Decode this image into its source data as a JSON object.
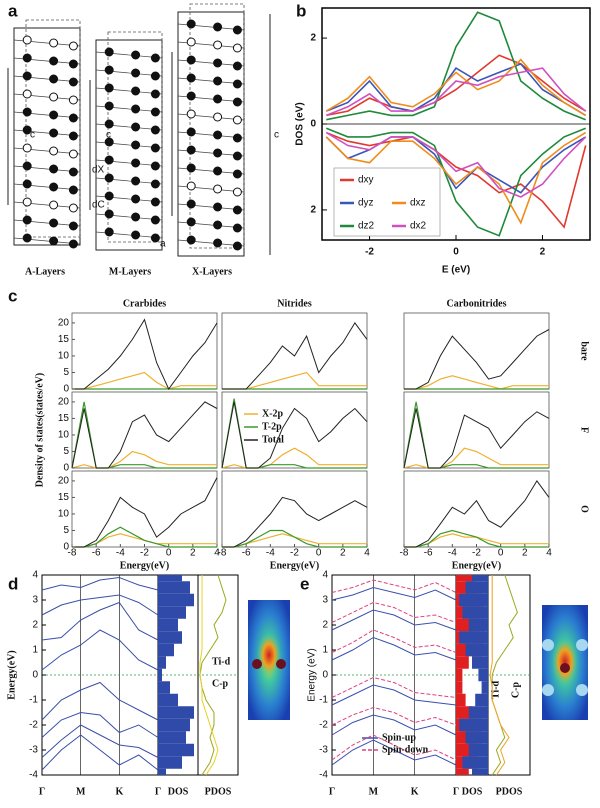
{
  "panel_labels": [
    "a",
    "b",
    "c",
    "d",
    "e"
  ],
  "panel_a": {
    "layers": [
      "A-Layers",
      "M-Layers",
      "X-Layers"
    ],
    "annotations": [
      "c",
      "c",
      "c",
      "dX",
      "dC",
      "a"
    ]
  },
  "chart_data": [
    {
      "type": "line",
      "xlabel": "E (eV)",
      "ylabel": "DOS (eV)",
      "x": [
        -3,
        -2.5,
        -2,
        -1.5,
        -1,
        -0.5,
        0,
        0.5,
        1,
        1.5,
        2,
        2.5,
        3
      ],
      "xlim": [
        -3.1,
        3.1
      ],
      "ylim": [
        -2.7,
        2.7
      ],
      "xticks": [
        -2,
        0,
        2
      ],
      "yticks": [
        {
          "value": -2,
          "label": "2"
        },
        0,
        2
      ],
      "series": [
        {
          "name": "dxy",
          "color": "#e03a2e",
          "values": [
            0.2,
            0.3,
            0.6,
            0.4,
            0.3,
            0.5,
            0.8,
            1.2,
            1.6,
            1.4,
            1.0,
            0.6,
            0.3
          ],
          "values_down": [
            -0.2,
            -0.4,
            -0.5,
            -0.4,
            -0.3,
            -0.6,
            -1.0,
            -1.2,
            -1.6,
            -1.4,
            -1.8,
            -2.4,
            -0.5
          ]
        },
        {
          "name": "dyz",
          "color": "#3a56b8",
          "values": [
            0.3,
            0.5,
            1.0,
            0.4,
            0.3,
            0.6,
            1.3,
            1.0,
            1.2,
            1.4,
            0.8,
            0.5,
            0.2
          ],
          "values_down": [
            -0.3,
            -0.8,
            -0.6,
            -0.3,
            -0.3,
            -0.7,
            -1.5,
            -1.0,
            -1.3,
            -1.6,
            -1.0,
            -0.6,
            -0.3
          ]
        },
        {
          "name": "dz2",
          "color": "#1e8a3a",
          "values": [
            0.1,
            0.2,
            0.3,
            0.2,
            0.2,
            0.4,
            1.8,
            2.6,
            2.4,
            1.0,
            0.6,
            0.3,
            0.1
          ],
          "values_down": [
            -0.1,
            -0.3,
            -0.3,
            -0.2,
            -0.2,
            -0.5,
            -1.8,
            -2.4,
            -2.6,
            -1.2,
            -0.7,
            -0.3,
            -0.1
          ]
        },
        {
          "name": "dxz",
          "color": "#f08c1a",
          "values": [
            0.3,
            0.6,
            1.1,
            0.5,
            0.4,
            0.7,
            1.2,
            0.8,
            1.0,
            1.5,
            0.9,
            0.5,
            0.2
          ],
          "values_down": [
            -0.3,
            -0.8,
            -0.9,
            -0.4,
            -0.4,
            -0.8,
            -1.4,
            -1.0,
            -1.4,
            -2.3,
            -0.9,
            -0.5,
            -0.2
          ]
        },
        {
          "name": "dx2",
          "color": "#d050c0",
          "values": [
            0.2,
            0.4,
            0.7,
            0.3,
            0.3,
            0.5,
            1.0,
            0.9,
            1.1,
            1.2,
            1.3,
            0.7,
            0.3
          ],
          "values_down": [
            -0.2,
            -0.5,
            -0.6,
            -0.3,
            -0.3,
            -0.6,
            -1.1,
            -0.9,
            -1.5,
            -1.7,
            -1.4,
            -0.8,
            -0.3
          ]
        }
      ]
    },
    {
      "type": "dos-grid",
      "ylabel": "Density of states(states/eV)",
      "xlabel": "Energy(eV)",
      "columns": [
        "Crarbides",
        "Nitrides",
        "Carbonitrides"
      ],
      "rows": [
        "bare",
        "F",
        "O"
      ],
      "x": [
        -8,
        -7,
        -6,
        -5,
        -4,
        -3,
        -2,
        -1,
        0,
        1,
        2,
        3,
        4
      ],
      "xlim": [
        -8,
        4
      ],
      "ylim": [
        0,
        23
      ],
      "xticks": [
        -8,
        -6,
        -4,
        -2,
        0,
        2,
        4
      ],
      "yticks": [
        0,
        5,
        10,
        15,
        20
      ],
      "series": [
        {
          "name": "X-2p",
          "color": "#f0b030"
        },
        {
          "name": "T-2p",
          "color": "#3a9a2a"
        },
        {
          "name": "Total",
          "color": "#222222"
        }
      ],
      "panels": [
        [
          [
            [
              0,
              0,
              1,
              2,
              3,
              4,
              5,
              2,
              0,
              1,
              1,
              1,
              1
            ],
            [
              0,
              0,
              0,
              0,
              0,
              0,
              0,
              0,
              0,
              0,
              0,
              0,
              0
            ],
            [
              0,
              0,
              3,
              6,
              10,
              15,
              21,
              8,
              0,
              5,
              10,
              14,
              20
            ]
          ],
          [
            [
              0,
              0,
              0,
              1,
              2,
              3,
              4,
              5,
              1,
              1,
              1,
              1,
              1
            ],
            [
              0,
              0,
              0,
              0,
              0,
              0,
              0,
              0,
              0,
              0,
              0,
              0,
              0
            ],
            [
              0,
              0,
              0,
              4,
              8,
              13,
              10,
              16,
              5,
              10,
              14,
              20,
              15
            ]
          ],
          [
            [
              0,
              0,
              1,
              3,
              4,
              3,
              2,
              1,
              0,
              1,
              1,
              1,
              1
            ],
            [
              0,
              0,
              0,
              0,
              0,
              0,
              0,
              0,
              0,
              0,
              0,
              0,
              0
            ],
            [
              0,
              0,
              2,
              10,
              16,
              12,
              8,
              3,
              4,
              8,
              12,
              16,
              18
            ]
          ]
        ],
        [
          [
            [
              0,
              1,
              0,
              0,
              2,
              5,
              4,
              2,
              1,
              1,
              1,
              1,
              1
            ],
            [
              0,
              20,
              0,
              0,
              1,
              1,
              1,
              0,
              0,
              0,
              0,
              0,
              0
            ],
            [
              0,
              18,
              0,
              0,
              5,
              14,
              16,
              10,
              8,
              12,
              16,
              20,
              18
            ]
          ],
          [
            [
              0,
              1,
              0,
              0,
              1,
              4,
              6,
              4,
              1,
              1,
              1,
              1,
              1
            ],
            [
              0,
              21,
              0,
              0,
              1,
              1,
              1,
              0,
              0,
              0,
              0,
              0,
              0
            ],
            [
              0,
              20,
              0,
              0,
              3,
              12,
              18,
              15,
              8,
              11,
              15,
              18,
              14
            ]
          ],
          [
            [
              0,
              1,
              0,
              0,
              2,
              6,
              5,
              3,
              1,
              1,
              1,
              1,
              1
            ],
            [
              0,
              20,
              0,
              0,
              1,
              1,
              1,
              0,
              0,
              0,
              0,
              0,
              0
            ],
            [
              0,
              18,
              0,
              0,
              4,
              16,
              14,
              12,
              6,
              10,
              14,
              17,
              15
            ]
          ]
        ],
        [
          [
            [
              0,
              0,
              1,
              3,
              4,
              3,
              2,
              1,
              1,
              1,
              1,
              1,
              1
            ],
            [
              0,
              0,
              1,
              4,
              6,
              4,
              2,
              1,
              0,
              0,
              0,
              0,
              0
            ],
            [
              0,
              0,
              2,
              8,
              15,
              12,
              10,
              3,
              6,
              10,
              12,
              14,
              21
            ]
          ],
          [
            [
              0,
              0,
              1,
              2,
              3,
              4,
              3,
              2,
              1,
              1,
              1,
              1,
              1
            ],
            [
              0,
              0,
              1,
              3,
              5,
              5,
              3,
              1,
              0,
              0,
              0,
              0,
              0
            ],
            [
              0,
              0,
              2,
              6,
              10,
              15,
              14,
              10,
              8,
              10,
              12,
              14,
              12
            ]
          ],
          [
            [
              0,
              0,
              1,
              3,
              4,
              3,
              3,
              2,
              1,
              1,
              1,
              1,
              1
            ],
            [
              0,
              0,
              1,
              4,
              5,
              4,
              3,
              1,
              0,
              0,
              0,
              0,
              0
            ],
            [
              0,
              0,
              2,
              7,
              12,
              10,
              14,
              8,
              6,
              10,
              14,
              20,
              15
            ]
          ]
        ]
      ]
    },
    {
      "type": "bands",
      "ylabel": "Energy(eV)",
      "categories": [
        "Γ",
        null,
        "M",
        null,
        "K",
        null,
        "Γ"
      ],
      "ylim": [
        -4,
        4
      ],
      "yticks": [
        4,
        3,
        2,
        1,
        0,
        -1,
        -2,
        -3,
        -4
      ],
      "band_color": "#3a4fa8",
      "bands": [
        [
          -3.8,
          -3.0,
          -2.4,
          -3.0,
          -3.6,
          -3.2,
          -3.8
        ],
        [
          -3.3,
          -2.6,
          -2.0,
          -2.4,
          -2.8,
          -2.9,
          -3.3
        ],
        [
          -2.5,
          -1.8,
          -1.5,
          -1.6,
          -2.3,
          -2.0,
          -2.5
        ],
        [
          -1.8,
          -1.0,
          -0.6,
          -0.3,
          -1.0,
          -1.4,
          -1.8
        ],
        [
          0.2,
          0.8,
          1.2,
          1.8,
          1.4,
          0.6,
          0.2
        ],
        [
          1.4,
          1.5,
          2.2,
          2.6,
          2.9,
          1.8,
          1.4
        ],
        [
          2.4,
          2.8,
          3.0,
          3.1,
          3.2,
          2.9,
          2.4
        ],
        [
          3.4,
          3.6,
          3.5,
          3.8,
          3.9,
          3.6,
          3.4
        ]
      ],
      "energies": [
        -4,
        -3.5,
        -3,
        -2.5,
        -2,
        -1.5,
        -1,
        -0.5,
        0,
        0.5,
        1,
        1.5,
        2,
        2.5,
        3,
        3.5,
        4
      ],
      "dos": {
        "label": "DOS",
        "color": "#2f4aa8",
        "xlim": [
          0,
          10
        ],
        "values": [
          2,
          6,
          9,
          7,
          8,
          9,
          5,
          3,
          1,
          2,
          4,
          6,
          5,
          7,
          9,
          8,
          6
        ]
      },
      "pdos": {
        "label": "PDOS",
        "xlim": [
          0,
          10
        ],
        "series": [
          {
            "name": "Ti-d",
            "color": "#9aa81a",
            "values": [
              1,
              3,
              4,
              3,
              4,
              4,
              2,
              1,
              0.5,
              1,
              3,
              5,
              4,
              6,
              7,
              6,
              5
            ]
          },
          {
            "name": "C-p",
            "color": "#e8d020",
            "values": [
              2,
              4,
              5,
              4,
              3,
              2,
              1,
              1,
              0.5,
              0.5,
              1,
              1,
              1,
              1,
              1,
              1,
              1
            ]
          }
        ]
      }
    },
    {
      "type": "spin-bands",
      "ylabel": "Energy (eV)",
      "categories": [
        "Γ",
        null,
        "M",
        null,
        "K",
        null,
        "Γ"
      ],
      "ylim": [
        -4,
        4
      ],
      "yticks": [
        4,
        3,
        2,
        1,
        0,
        -1,
        -2,
        -3,
        -4
      ],
      "series": [
        {
          "name": "Spin-up",
          "color": "#3a4fb0",
          "dashed": false,
          "bands": [
            [
              -3.6,
              -3.0,
              -2.6,
              -3.0,
              -3.4,
              -3.2,
              -3.6
            ],
            [
              -2.4,
              -1.9,
              -1.6,
              -1.8,
              -2.2,
              -2.0,
              -2.4
            ],
            [
              -1.2,
              -0.8,
              -0.4,
              -0.6,
              -1.0,
              -1.1,
              -1.2
            ],
            [
              0.6,
              1.0,
              1.5,
              1.2,
              0.8,
              0.9,
              0.6
            ],
            [
              1.8,
              2.2,
              2.6,
              2.4,
              2.0,
              2.1,
              1.8
            ],
            [
              3.0,
              3.2,
              3.5,
              3.3,
              3.1,
              3.4,
              3.0
            ]
          ]
        },
        {
          "name": "Spin-down",
          "color": "#e04080",
          "dashed": true,
          "bands": [
            [
              -3.4,
              -2.8,
              -2.4,
              -2.8,
              -3.2,
              -3.0,
              -3.4
            ],
            [
              -2.0,
              -1.6,
              -1.3,
              -1.5,
              -1.9,
              -1.7,
              -2.0
            ],
            [
              -0.9,
              -0.5,
              -0.1,
              -0.3,
              -0.7,
              -0.8,
              -0.9
            ],
            [
              0.9,
              1.3,
              1.8,
              1.5,
              1.1,
              1.2,
              0.9
            ],
            [
              2.1,
              2.5,
              2.9,
              2.7,
              2.3,
              2.4,
              2.1
            ],
            [
              3.3,
              3.5,
              3.8,
              3.6,
              3.4,
              3.7,
              3.3
            ]
          ]
        }
      ],
      "energies": [
        -4,
        -3.5,
        -3,
        -2.5,
        -2,
        -1.5,
        -1,
        -0.5,
        0,
        0.5,
        1,
        1.5,
        2,
        2.5,
        3,
        3.5,
        4
      ],
      "dos": {
        "label": "DOS",
        "xlim": [
          0,
          10
        ],
        "up_color": "#2f4aa8",
        "down_color": "#e02020",
        "up": [
          5,
          8,
          6,
          7,
          9,
          6,
          4,
          2,
          3,
          5,
          7,
          9,
          6,
          8,
          9,
          7,
          5
        ],
        "down": [
          4,
          7,
          6,
          8,
          8,
          5,
          3,
          2,
          2,
          4,
          8,
          9,
          7,
          9,
          8,
          6,
          5
        ]
      },
      "pdos": {
        "label": "PDOS",
        "xlim": [
          0,
          10
        ],
        "series": [
          {
            "name": "Ti-d",
            "color": "#9aa81a",
            "values": [
              1,
              3,
              2,
              4,
              3,
              2,
              1,
              1,
              1,
              2,
              4,
              6,
              5,
              7,
              6,
              5,
              4
            ]
          },
          {
            "name": "C-p",
            "color": "#f0a020",
            "values": [
              2,
              4,
              3,
              5,
              3,
              2,
              1,
              1,
              0.5,
              1,
              1,
              1,
              1,
              1,
              1,
              1,
              1
            ]
          }
        ]
      }
    }
  ]
}
